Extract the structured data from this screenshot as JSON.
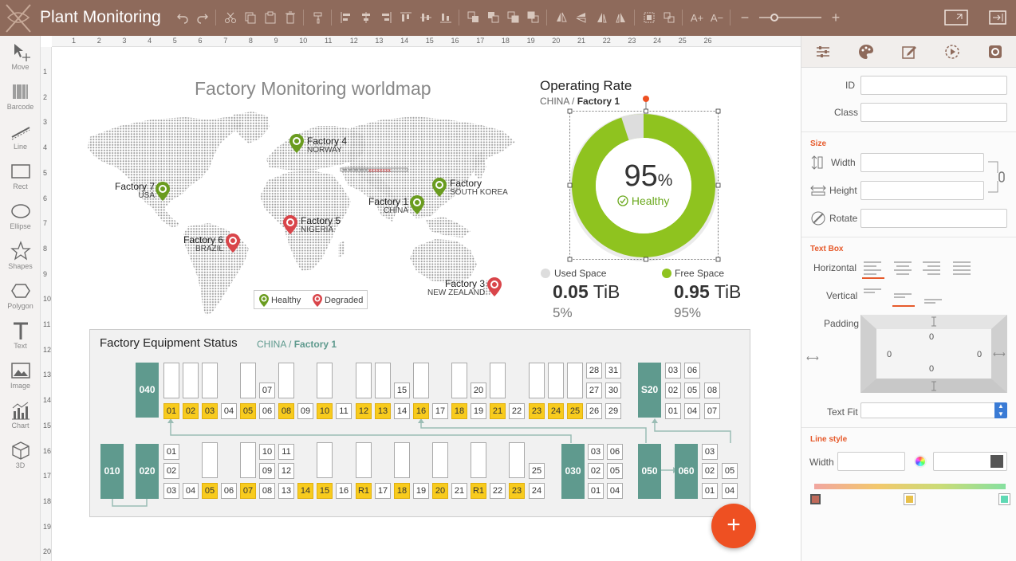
{
  "app": {
    "title": "Plant Monitoring"
  },
  "toolbar": {
    "icons": [
      "undo-icon",
      "redo-icon",
      "cut-icon",
      "copy-icon",
      "paste-icon",
      "delete-icon",
      "format-painter-icon",
      "align-left-icon",
      "align-center-icon",
      "align-right-icon",
      "align-top-icon",
      "align-middle-icon",
      "align-bottom-icon",
      "bring-front-icon",
      "send-back-icon",
      "bring-forward-icon",
      "send-backward-icon",
      "flip-horizontal-icon",
      "flip-vertical-icon",
      "rotate-left-icon",
      "rotate-right-icon",
      "group-icon",
      "ungroup-icon",
      "font-increase-icon",
      "font-decrease-icon",
      "zoom-out-icon",
      "zoom-in-icon",
      "preview-icon",
      "export-icon"
    ],
    "zoom_level": 0.25
  },
  "tools": [
    {
      "label": "Move",
      "icon": "move-icon"
    },
    {
      "label": "Barcode",
      "icon": "barcode-icon"
    },
    {
      "label": "Line",
      "icon": "line-icon"
    },
    {
      "label": "Rect",
      "icon": "rect-icon"
    },
    {
      "label": "Ellipse",
      "icon": "ellipse-icon"
    },
    {
      "label": "Shapes",
      "icon": "star-icon"
    },
    {
      "label": "Polygon",
      "icon": "polygon-icon"
    },
    {
      "label": "Text",
      "icon": "text-icon"
    },
    {
      "label": "Image",
      "icon": "image-icon"
    },
    {
      "label": "Chart",
      "icon": "chart-icon"
    },
    {
      "label": "3D",
      "icon": "cube-icon"
    }
  ],
  "ruler": {
    "h_numbers": [
      "1",
      "2",
      "3",
      "4",
      "5",
      "6",
      "7",
      "8",
      "9",
      "10",
      "11",
      "12",
      "13",
      "14",
      "15",
      "16",
      "17",
      "18",
      "19",
      "20",
      "21",
      "22",
      "23",
      "24",
      "25",
      "26"
    ],
    "v_numbers": [
      "1",
      "2",
      "3",
      "4",
      "5",
      "6",
      "7",
      "8",
      "9",
      "10",
      "11",
      "12",
      "13",
      "14",
      "15",
      "16",
      "17",
      "18",
      "19",
      "20"
    ]
  },
  "worldmap": {
    "title": "Factory Monitoring worldmap",
    "factories": [
      {
        "name": "Factory 4",
        "place": "NORWAY",
        "status": "healthy"
      },
      {
        "name": "Factory 7",
        "place": "USA",
        "status": "healthy"
      },
      {
        "name": "Factory",
        "place": "SOUTH KOREA",
        "status": "healthy"
      },
      {
        "name": "Factory 1",
        "place": "CHINA",
        "status": "healthy"
      },
      {
        "name": "Factory 5",
        "place": "NIGERIA",
        "status": "degraded"
      },
      {
        "name": "Factory 6",
        "place": "BRAZIL",
        "status": "degraded"
      },
      {
        "name": "Factory 3",
        "place": "NEW ZEALAND",
        "status": "degraded"
      }
    ],
    "legend": {
      "healthy": "Healthy",
      "degraded": "Degraded"
    },
    "colors": {
      "healthy": "#6a9c1f",
      "degraded": "#d9454a"
    }
  },
  "operating": {
    "title": "Operating Rate",
    "crumb_country": "CHINA",
    "crumb_sep": "/",
    "crumb_factory": "Factory 1",
    "percent": "95",
    "percent_sign": "%",
    "status": "Healthy",
    "used_fraction": 0.05,
    "used_label": "Used Space",
    "free_label": "Free Space",
    "used_value": "0.05",
    "free_value": "0.95",
    "unit": "TiB",
    "used_pct": "5%",
    "free_pct": "95%",
    "colors": {
      "free": "#8fc31f",
      "used": "#dddddd"
    }
  },
  "equipment": {
    "title": "Factory Equipment Status",
    "crumb_country": "CHINA",
    "crumb_sep": "/",
    "crumb_factory": "Factory 1",
    "highlight_color": "#f8cb1d",
    "machine_color": "#5f9a8e",
    "row1_bottom": [
      "01",
      "02",
      "03",
      "04",
      "05",
      "06",
      "08",
      "09",
      "10",
      "11",
      "12",
      "13",
      "14",
      "16",
      "17",
      "18",
      "19",
      "21",
      "22",
      "23",
      "24",
      "25",
      "26",
      "29"
    ],
    "row1_mid": [
      "07",
      "15",
      "20",
      "27",
      "30"
    ],
    "row1_top": [
      "28",
      "31"
    ],
    "row2_bottom": [
      "03",
      "04",
      "05",
      "06",
      "07",
      "08",
      "13",
      "14",
      "15",
      "16",
      "R1",
      "17",
      "18",
      "19",
      "20",
      "21",
      "R1",
      "22",
      "23",
      "24"
    ],
    "row2_mid": [
      "02",
      "09",
      "12",
      "25"
    ],
    "row2_top": [
      "01",
      "10",
      "11"
    ],
    "machines": {
      "m040": "040",
      "s20": "S20",
      "m010": "010",
      "m020": "020",
      "m030": "030",
      "m050": "050",
      "m060": "060"
    },
    "s20_cells": [
      "03",
      "06",
      "02",
      "05",
      "08",
      "01",
      "04",
      "07"
    ],
    "m030_cells": [
      "03",
      "06",
      "02",
      "05",
      "01",
      "04"
    ],
    "m060_cells": [
      "03",
      "02",
      "05",
      "01",
      "04"
    ]
  },
  "panel": {
    "tabs": [
      "properties-icon",
      "palette-icon",
      "edit-icon",
      "animation-icon",
      "settings-icon"
    ],
    "id_label": "ID",
    "class_label": "Class",
    "size_section": "Size",
    "width_label": "Width",
    "height_label": "Height",
    "rotate_label": "Rotate",
    "textbox_section": "Text Box",
    "horizontal_label": "Horizontal",
    "vertical_label": "Vertical",
    "padding_label": "Padding",
    "padding_top": "0",
    "padding_left": "0",
    "padding_right": "0",
    "padding_bottom": "0",
    "textfit_label": "Text Fit",
    "linestyle_section": "Line style",
    "line_width_label": "Width",
    "line_color": "#555555"
  },
  "fab": {
    "label": "+"
  }
}
